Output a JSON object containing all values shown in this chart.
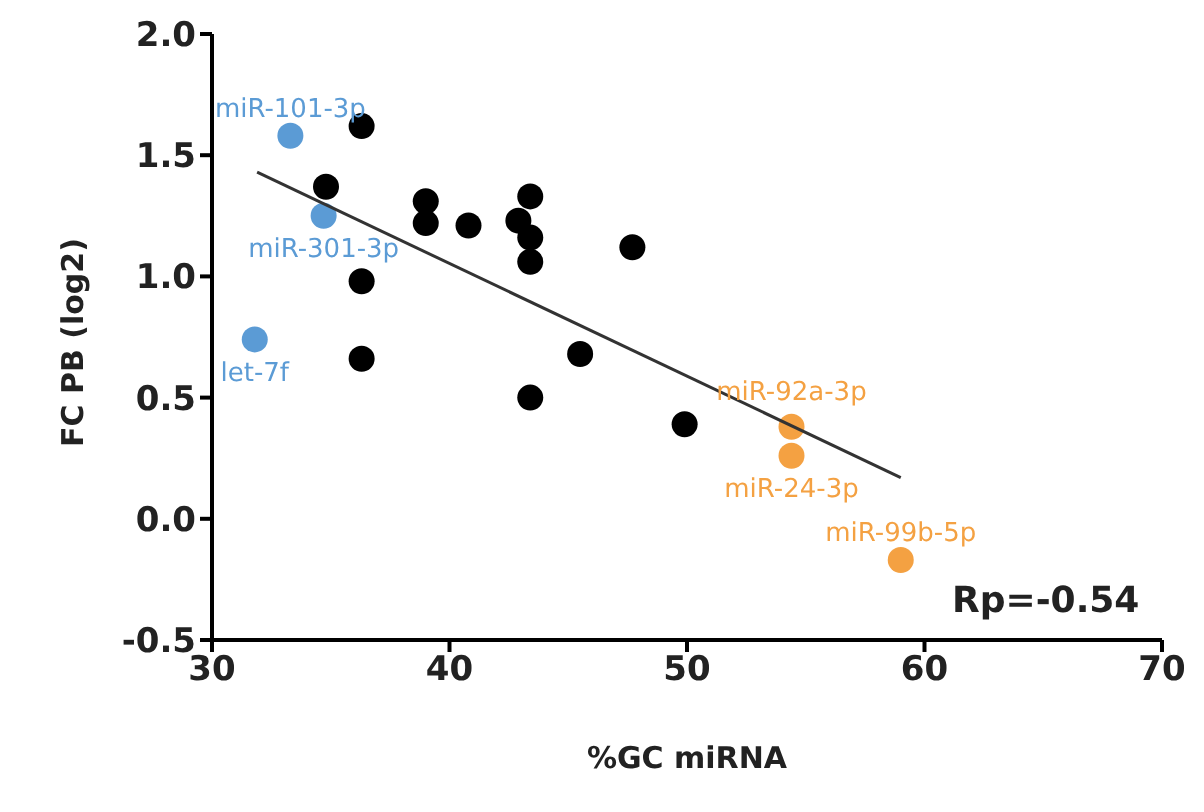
{
  "chart_data": {
    "type": "scatter",
    "xlabel": "%GC miRNA",
    "ylabel": "FC PB (log2)",
    "xlim": [
      30,
      70
    ],
    "xticks": [
      30,
      40,
      50,
      60,
      70
    ],
    "ylim": [
      -0.5,
      2.0
    ],
    "yticks": [
      {
        "value": -0.5,
        "label": "-0.5"
      },
      {
        "value": 0,
        "label": "0.0"
      },
      {
        "value": 0.5,
        "label": "0.5"
      },
      {
        "value": 1,
        "label": "1.0"
      },
      {
        "value": 1.5,
        "label": "1.5"
      },
      {
        "value": 2,
        "label": "2.0"
      }
    ],
    "grid": false,
    "marker": "circle",
    "series": [
      {
        "color": "#000000",
        "x": [
          36.3,
          34.8,
          36.3,
          36.3,
          39.0,
          39.0,
          40.8,
          42.9,
          43.4,
          43.4,
          43.4,
          47.7,
          45.5,
          43.4,
          49.9
        ],
        "values": [
          1.62,
          1.37,
          0.98,
          0.66,
          1.31,
          1.22,
          1.21,
          1.23,
          1.16,
          1.33,
          1.06,
          1.12,
          0.68,
          0.5,
          0.39
        ]
      },
      {
        "color": "#5b9bd5",
        "x": [
          33.3,
          34.7,
          31.8
        ],
        "values": [
          1.58,
          1.25,
          0.74
        ]
      },
      {
        "color": "#f4a142",
        "x": [
          54.4,
          54.4,
          59.0
        ],
        "values": [
          0.38,
          0.26,
          -0.17
        ]
      },
      {
        "type": "line",
        "color": "#333333",
        "marker": "none",
        "x": [
          31.9,
          59.0
        ],
        "values": [
          1.43,
          0.17
        ]
      }
    ],
    "annotations": [
      {
        "text": "miR-101-3p",
        "x": 33.3,
        "y": 1.58
      },
      {
        "text": "miR-301-3p",
        "x": 34.7,
        "y": 1.25
      },
      {
        "text": "let-7f",
        "x": 31.8,
        "y": 0.74
      },
      {
        "text": "miR-92a-3p",
        "x": 54.4,
        "y": 0.38
      },
      {
        "text": "miR-24-3p",
        "x": 54.4,
        "y": 0.26
      },
      {
        "text": "miR-99b-5p",
        "x": 59.0,
        "y": -0.17
      },
      "Rp=-0.54"
    ]
  }
}
